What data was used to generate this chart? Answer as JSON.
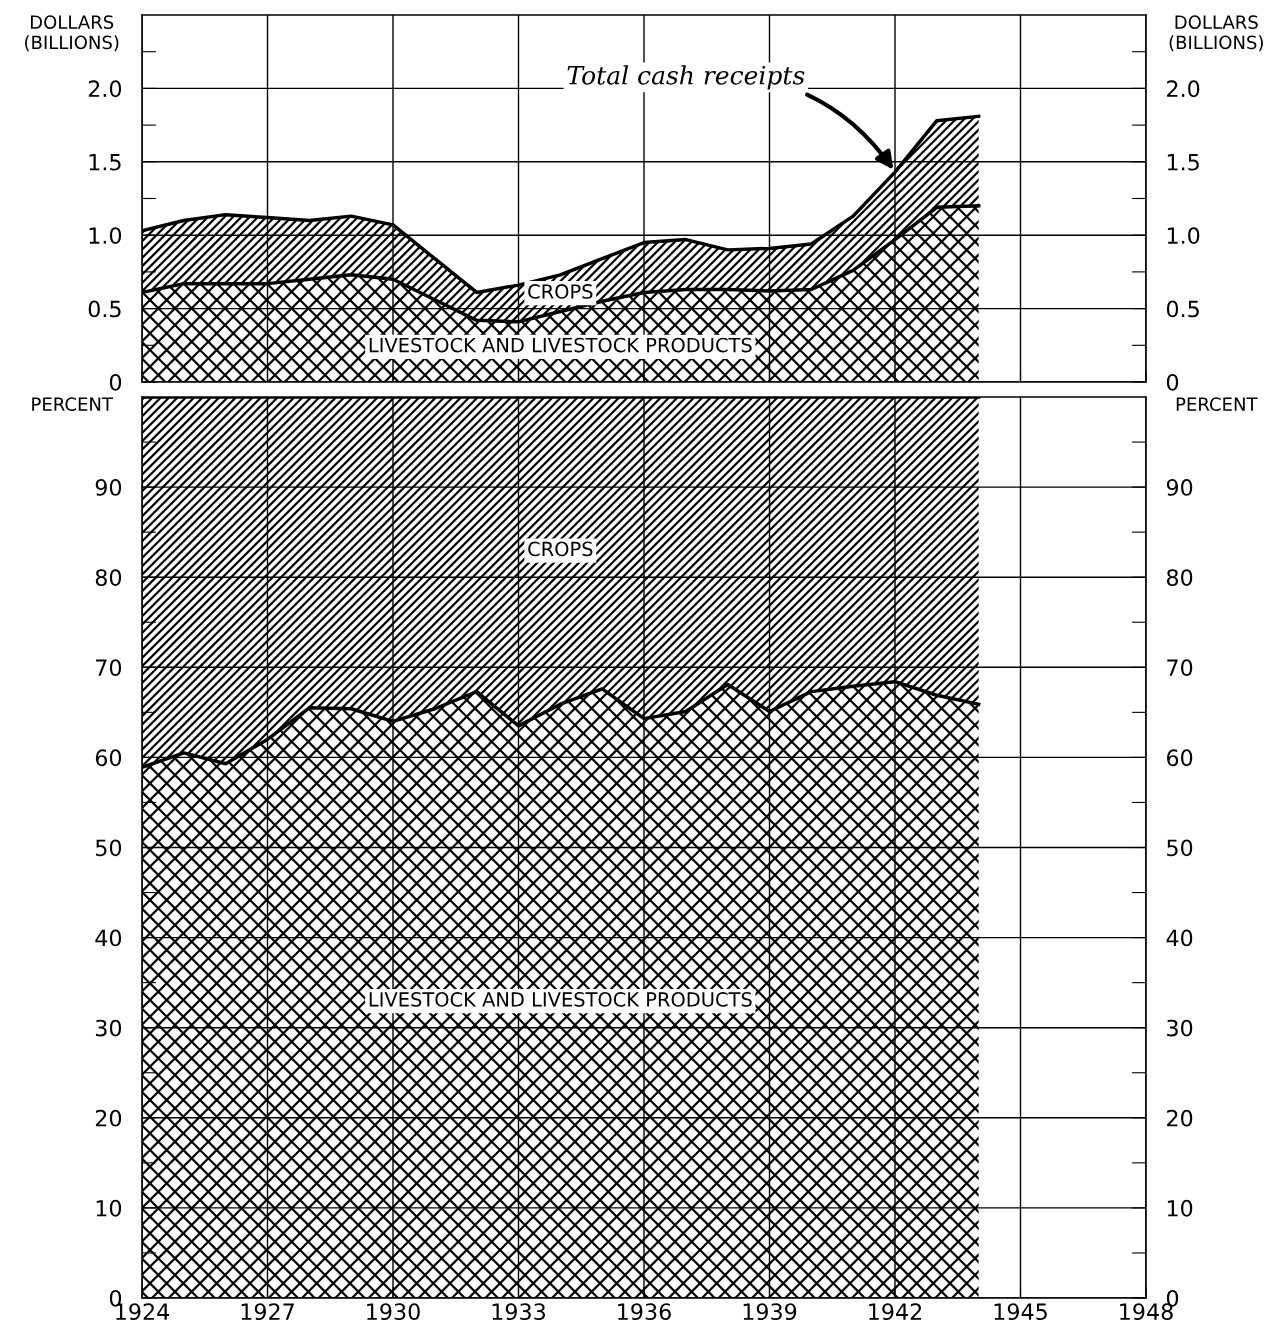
{
  "chart_data": [
    {
      "type": "area",
      "stacked": true,
      "ylabel": "DOLLARS\n(BILLIONS)",
      "y2label": "DOLLARS\n(BILLIONS)",
      "x": [
        1924,
        1925,
        1926,
        1927,
        1928,
        1929,
        1930,
        1931,
        1932,
        1933,
        1934,
        1935,
        1936,
        1937,
        1938,
        1939,
        1940,
        1941,
        1942,
        1943,
        1944
      ],
      "series": [
        {
          "name": "LIVESTOCK AND LIVESTOCK PRODUCTS",
          "color": "#000000",
          "values": [
            0.61,
            0.67,
            0.67,
            0.67,
            0.7,
            0.73,
            0.7,
            0.56,
            0.42,
            0.41,
            0.48,
            0.55,
            0.61,
            0.63,
            0.63,
            0.62,
            0.63,
            0.76,
            0.97,
            1.19,
            1.2
          ]
        },
        {
          "name": "CROPS",
          "color": "#000000",
          "values": [
            0.42,
            0.43,
            0.47,
            0.45,
            0.4,
            0.4,
            0.37,
            0.28,
            0.19,
            0.25,
            0.25,
            0.29,
            0.34,
            0.34,
            0.27,
            0.29,
            0.31,
            0.37,
            0.46,
            0.59,
            0.61
          ]
        }
      ],
      "xlim": [
        1924,
        1948
      ],
      "xticks": [
        1924,
        1927,
        1930,
        1933,
        1936,
        1939,
        1942,
        1945,
        1948
      ],
      "ylim": [
        0,
        2.5
      ],
      "yticks": [
        0,
        {
          "value": 0.25,
          "label": null
        },
        0.5,
        {
          "value": 0.75,
          "label": null
        },
        {
          "value": 1,
          "label": "1.0"
        },
        {
          "value": 1.25,
          "label": null
        },
        1.5,
        {
          "value": 1.75,
          "label": null
        },
        {
          "value": 2,
          "label": "2.0"
        },
        {
          "value": 2.25,
          "label": null
        }
      ],
      "y2lim": [
        0,
        2.5
      ],
      "y2ticks": [
        0,
        {
          "value": 0.25,
          "label": null
        },
        0.5,
        {
          "value": 0.75,
          "label": null
        },
        {
          "value": 1,
          "label": "1.0"
        },
        {
          "value": 1.25,
          "label": null
        },
        1.5,
        {
          "value": 1.75,
          "label": null
        },
        {
          "value": 2,
          "label": "2.0"
        },
        {
          "value": 2.25,
          "label": null
        }
      ],
      "annotations": [
        {
          "text": "Total cash receipts",
          "x": 1942,
          "y": 1.43
        }
      ],
      "grid": true,
      "tick_labels": "y",
      "legend": false
    },
    {
      "type": "area",
      "stacked": true,
      "ylabel": "PERCENT",
      "y2label": "PERCENT",
      "x": [
        1924,
        1925,
        1926,
        1927,
        1928,
        1929,
        1930,
        1931,
        1932,
        1933,
        1934,
        1935,
        1936,
        1937,
        1938,
        1939,
        1940,
        1941,
        1942,
        1943,
        1944
      ],
      "series": [
        {
          "name": "LIVESTOCK AND LIVESTOCK PRODUCTS",
          "color": "#000000",
          "values": [
            58.9,
            60.5,
            59.3,
            62.0,
            65.5,
            65.4,
            64.0,
            65.4,
            67.3,
            63.5,
            65.9,
            67.6,
            64.3,
            65.1,
            68.1,
            65.1,
            67.3,
            67.9,
            68.4,
            66.9,
            65.9
          ]
        },
        {
          "name": "CROPS",
          "color": "#000000",
          "values": [
            41.1,
            39.5,
            40.7,
            38.0,
            34.5,
            34.6,
            36.0,
            34.6,
            32.7,
            36.5,
            34.1,
            32.4,
            35.7,
            34.9,
            31.9,
            34.9,
            32.7,
            32.1,
            31.6,
            33.1,
            34.1
          ]
        }
      ],
      "xlim": [
        1924,
        1948
      ],
      "xticks": [
        1924,
        1927,
        1930,
        1933,
        1936,
        1939,
        1942,
        1945,
        1948
      ],
      "ylim": [
        0,
        100
      ],
      "yticks": [
        0,
        {
          "value": 5,
          "label": null
        },
        10,
        {
          "value": 15,
          "label": null
        },
        20,
        {
          "value": 25,
          "label": null
        },
        30,
        {
          "value": 35,
          "label": null
        },
        40,
        {
          "value": 45,
          "label": null
        },
        50,
        {
          "value": 55,
          "label": null
        },
        60,
        {
          "value": 65,
          "label": null
        },
        70,
        {
          "value": 75,
          "label": null
        },
        80,
        {
          "value": 85,
          "label": null
        },
        90,
        {
          "value": 95,
          "label": null
        }
      ],
      "y2lim": [
        0,
        100
      ],
      "y2ticks": [
        0,
        {
          "value": 5,
          "label": null
        },
        10,
        {
          "value": 15,
          "label": null
        },
        20,
        {
          "value": 25,
          "label": null
        },
        30,
        {
          "value": 35,
          "label": null
        },
        40,
        {
          "value": 45,
          "label": null
        },
        50,
        {
          "value": 55,
          "label": null
        },
        60,
        {
          "value": 65,
          "label": null
        },
        70,
        {
          "value": 75,
          "label": null
        },
        80,
        {
          "value": 85,
          "label": null
        },
        90,
        {
          "value": 95,
          "label": null
        }
      ],
      "grid": true,
      "legend": false
    }
  ]
}
